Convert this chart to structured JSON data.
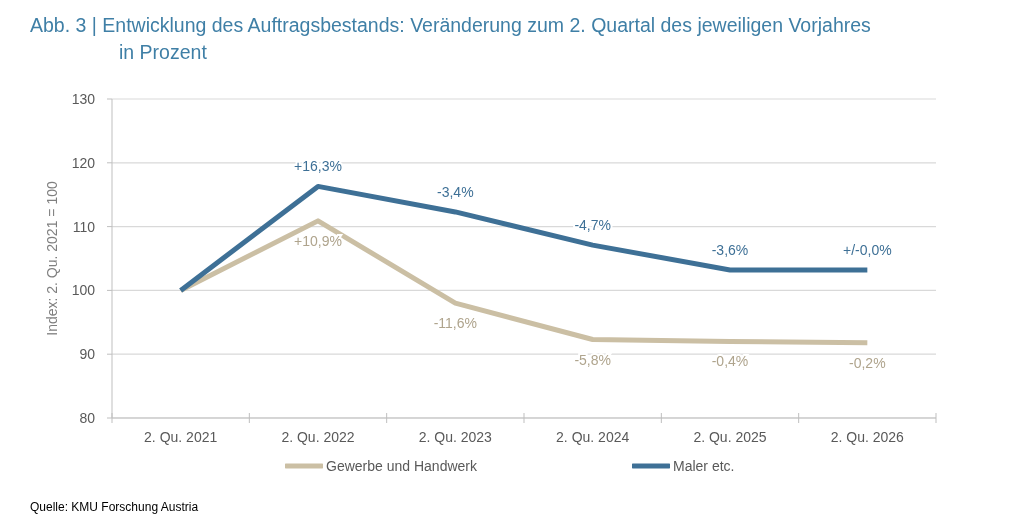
{
  "chart_data": {
    "type": "line",
    "title": "Abb. 3 | Entwicklung des Auftragsbestands: Veränderung zum 2. Quartal des jeweiligen Vorjahres in Prozent",
    "ylabel": "Index: 2. Qu. 2021 = 100",
    "categories": [
      "2. Qu. 2021",
      "2. Qu. 2022",
      "2. Qu. 2023",
      "2. Qu. 2024",
      "2. Qu. 2025",
      "2. Qu. 2026"
    ],
    "series": [
      {
        "name": "Gewerbe und Handwerk",
        "color": "#cbbfa4",
        "values": [
          100,
          110.9,
          98.0,
          92.3,
          92.0,
          91.8
        ]
      },
      {
        "name": "Maler etc.",
        "color": "#3e7096",
        "values": [
          100,
          116.3,
          112.3,
          107.1,
          103.2,
          103.2
        ]
      }
    ],
    "ylim": [
      80,
      130
    ],
    "yticks": [
      80,
      90,
      100,
      110,
      120,
      130
    ],
    "grid": "y",
    "legend": "bottom",
    "marker": "none",
    "line_style": "solid",
    "annotations": [
      {
        "text": "+10,9%",
        "x": "2. Qu. 2022",
        "y": 110.9
      },
      {
        "text": "-11,6%",
        "x": "2. Qu. 2023",
        "y": 98.0
      },
      {
        "text": "-5,8%",
        "x": "2. Qu. 2024",
        "y": 92.3
      },
      {
        "text": "-0,4%",
        "x": "2. Qu. 2025",
        "y": 92.0
      },
      {
        "text": "-0,2%",
        "x": "2. Qu. 2026",
        "y": 91.8
      },
      {
        "text": "+16,3%",
        "x": "2. Qu. 2022",
        "y": 116.3
      },
      {
        "text": "-3,4%",
        "x": "2. Qu. 2023",
        "y": 112.3
      },
      {
        "text": "-4,7%",
        "x": "2. Qu. 2024",
        "y": 107.1
      },
      {
        "text": "-3,6%",
        "x": "2. Qu. 2025",
        "y": 103.2
      },
      {
        "text": "+/-0,0%",
        "x": "2. Qu. 2026",
        "y": 103.2
      },
      "Quelle: KMU Forschung Austria"
    ]
  }
}
